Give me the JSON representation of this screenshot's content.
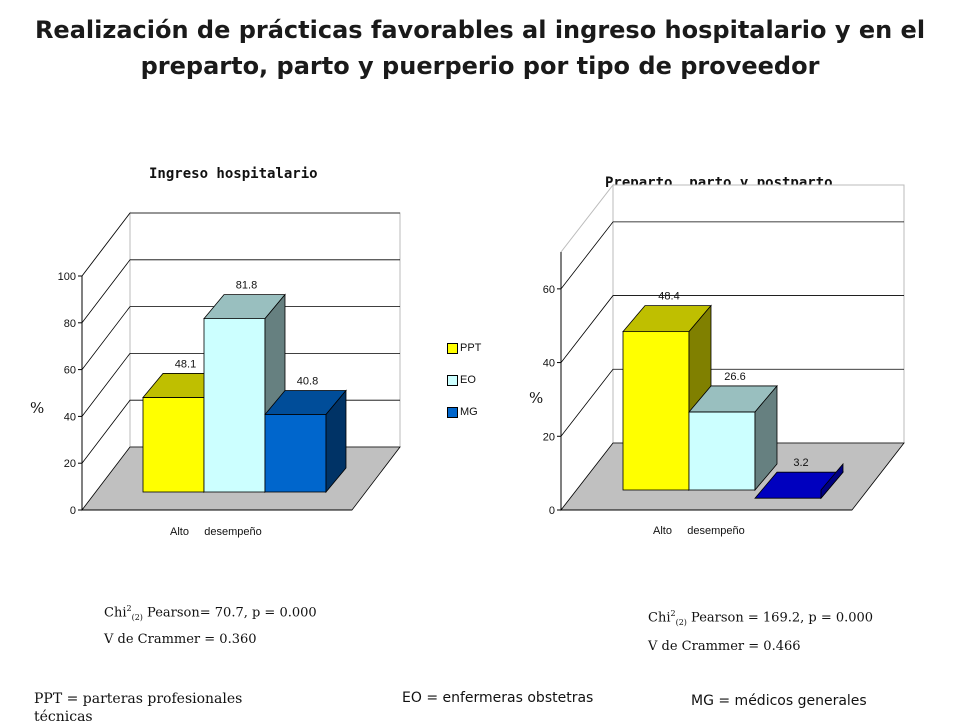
{
  "page": {
    "title_line1": "Realización de prácticas favorables al ingreso hospitalario y en el",
    "title_line2": "preparto, parto y puerperio por tipo de proveedor"
  },
  "chart_data": [
    {
      "type": "bar",
      "title": "Ingreso hospitalario",
      "ylabel": "%",
      "xlabel": "Alto     desempeño",
      "ylim": [
        0,
        100
      ],
      "yticks": [
        0,
        20,
        40,
        60,
        80,
        100
      ],
      "categories": [
        "Alto desempeño"
      ],
      "series": [
        {
          "name": "PPT",
          "values": [
            48.1
          ],
          "label": "48.1",
          "color": "#ffff00"
        },
        {
          "name": "EO",
          "values": [
            81.8
          ],
          "label": "81.8",
          "color": "#ccffff"
        },
        {
          "name": "MG",
          "values": [
            40.8
          ],
          "label": "40.8",
          "color": "#0066cc"
        }
      ],
      "legend": [
        "PPT",
        "EO",
        "MG"
      ],
      "legend_position": "right",
      "stats": {
        "chi_prefix": "Chi",
        "chi_sup": "2",
        "chi_sub": "(2)",
        "chi_rest": " Pearson= 70.7,  p = 0.000",
        "cramer": "V de Crammer = 0.360"
      }
    },
    {
      "type": "bar",
      "title": "Preparto,  parto y postparto",
      "ylabel": "%",
      "xlabel": "Alto     desempeño",
      "ylim": [
        0,
        70
      ],
      "yticks": [
        0,
        20,
        40,
        60
      ],
      "categories": [
        "Alto desempeño"
      ],
      "series": [
        {
          "name": "PPT",
          "values": [
            48.4
          ],
          "label": "48.4",
          "color": "#ffff00"
        },
        {
          "name": "EO",
          "values": [
            26.6
          ],
          "label": "26.6",
          "color": "#ccffff"
        },
        {
          "name": "MG",
          "values": [
            3.2
          ],
          "label": "3.2",
          "color": "#0000ff"
        }
      ],
      "stats": {
        "chi_prefix": "Chi",
        "chi_sup": "2",
        "chi_sub": "(2)",
        "chi_rest": "  Pearson = 169.2,  p = 0.000",
        "cramer": "V de Crammer = 0.466"
      }
    }
  ],
  "footer": {
    "ppt": "PPT = parteras profesionales técnicas",
    "eo": "EO  =  enfermeras obstetras",
    "mg": "MG  = médicos generales"
  }
}
